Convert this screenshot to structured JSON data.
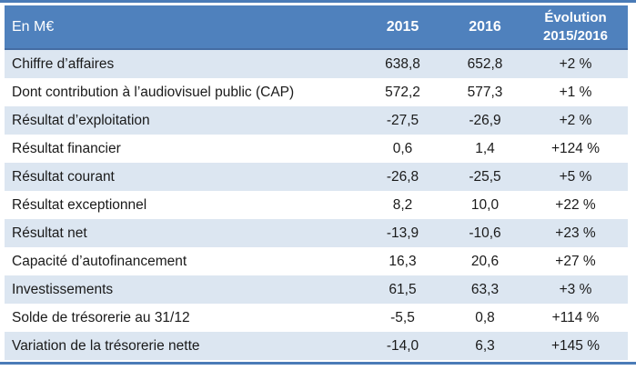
{
  "chart_data": {
    "type": "table",
    "unit_label": "En M€",
    "columns": [
      "En M€",
      "2015",
      "2016",
      "Évolution 2015/2016"
    ],
    "rows": [
      {
        "label": "Chiffre d’affaires",
        "y2015": "638,8",
        "y2016": "652,8",
        "evolution": "+2 %"
      },
      {
        "label": "Dont contribution à l’audiovisuel public (CAP)",
        "y2015": "572,2",
        "y2016": "577,3",
        "evolution": "+1 %"
      },
      {
        "label": "Résultat d’exploitation",
        "y2015": "-27,5",
        "y2016": "-26,9",
        "evolution": "+2 %"
      },
      {
        "label": "Résultat financier",
        "y2015": "0,6",
        "y2016": "1,4",
        "evolution": "+124 %"
      },
      {
        "label": "Résultat courant",
        "y2015": "-26,8",
        "y2016": "-25,5",
        "evolution": "+5 %"
      },
      {
        "label": "Résultat exceptionnel",
        "y2015": "8,2",
        "y2016": "10,0",
        "evolution": "+22 %"
      },
      {
        "label": "Résultat net",
        "y2015": "-13,9",
        "y2016": "-10,6",
        "evolution": "+23 %"
      },
      {
        "label": "Capacité d’autofinancement",
        "y2015": "16,3",
        "y2016": "20,6",
        "evolution": "+27 %"
      },
      {
        "label": "Investissements",
        "y2015": "61,5",
        "y2016": "63,3",
        "evolution": "+3 %"
      },
      {
        "label": "Solde de trésorerie au 31/12",
        "y2015": "-5,5",
        "y2016": "0,8",
        "evolution": "+114 %"
      },
      {
        "label": "Variation de la trésorerie nette",
        "y2015": "-14,0",
        "y2016": "6,3",
        "evolution": "+145 %"
      }
    ]
  },
  "colors": {
    "header_bg": "#4f81bd",
    "stripe": "#dce6f1",
    "rule": "#4a7bb7",
    "header_border": "#446ca3",
    "header_text": "#ffffff",
    "body_text": "#1a1a1a"
  }
}
